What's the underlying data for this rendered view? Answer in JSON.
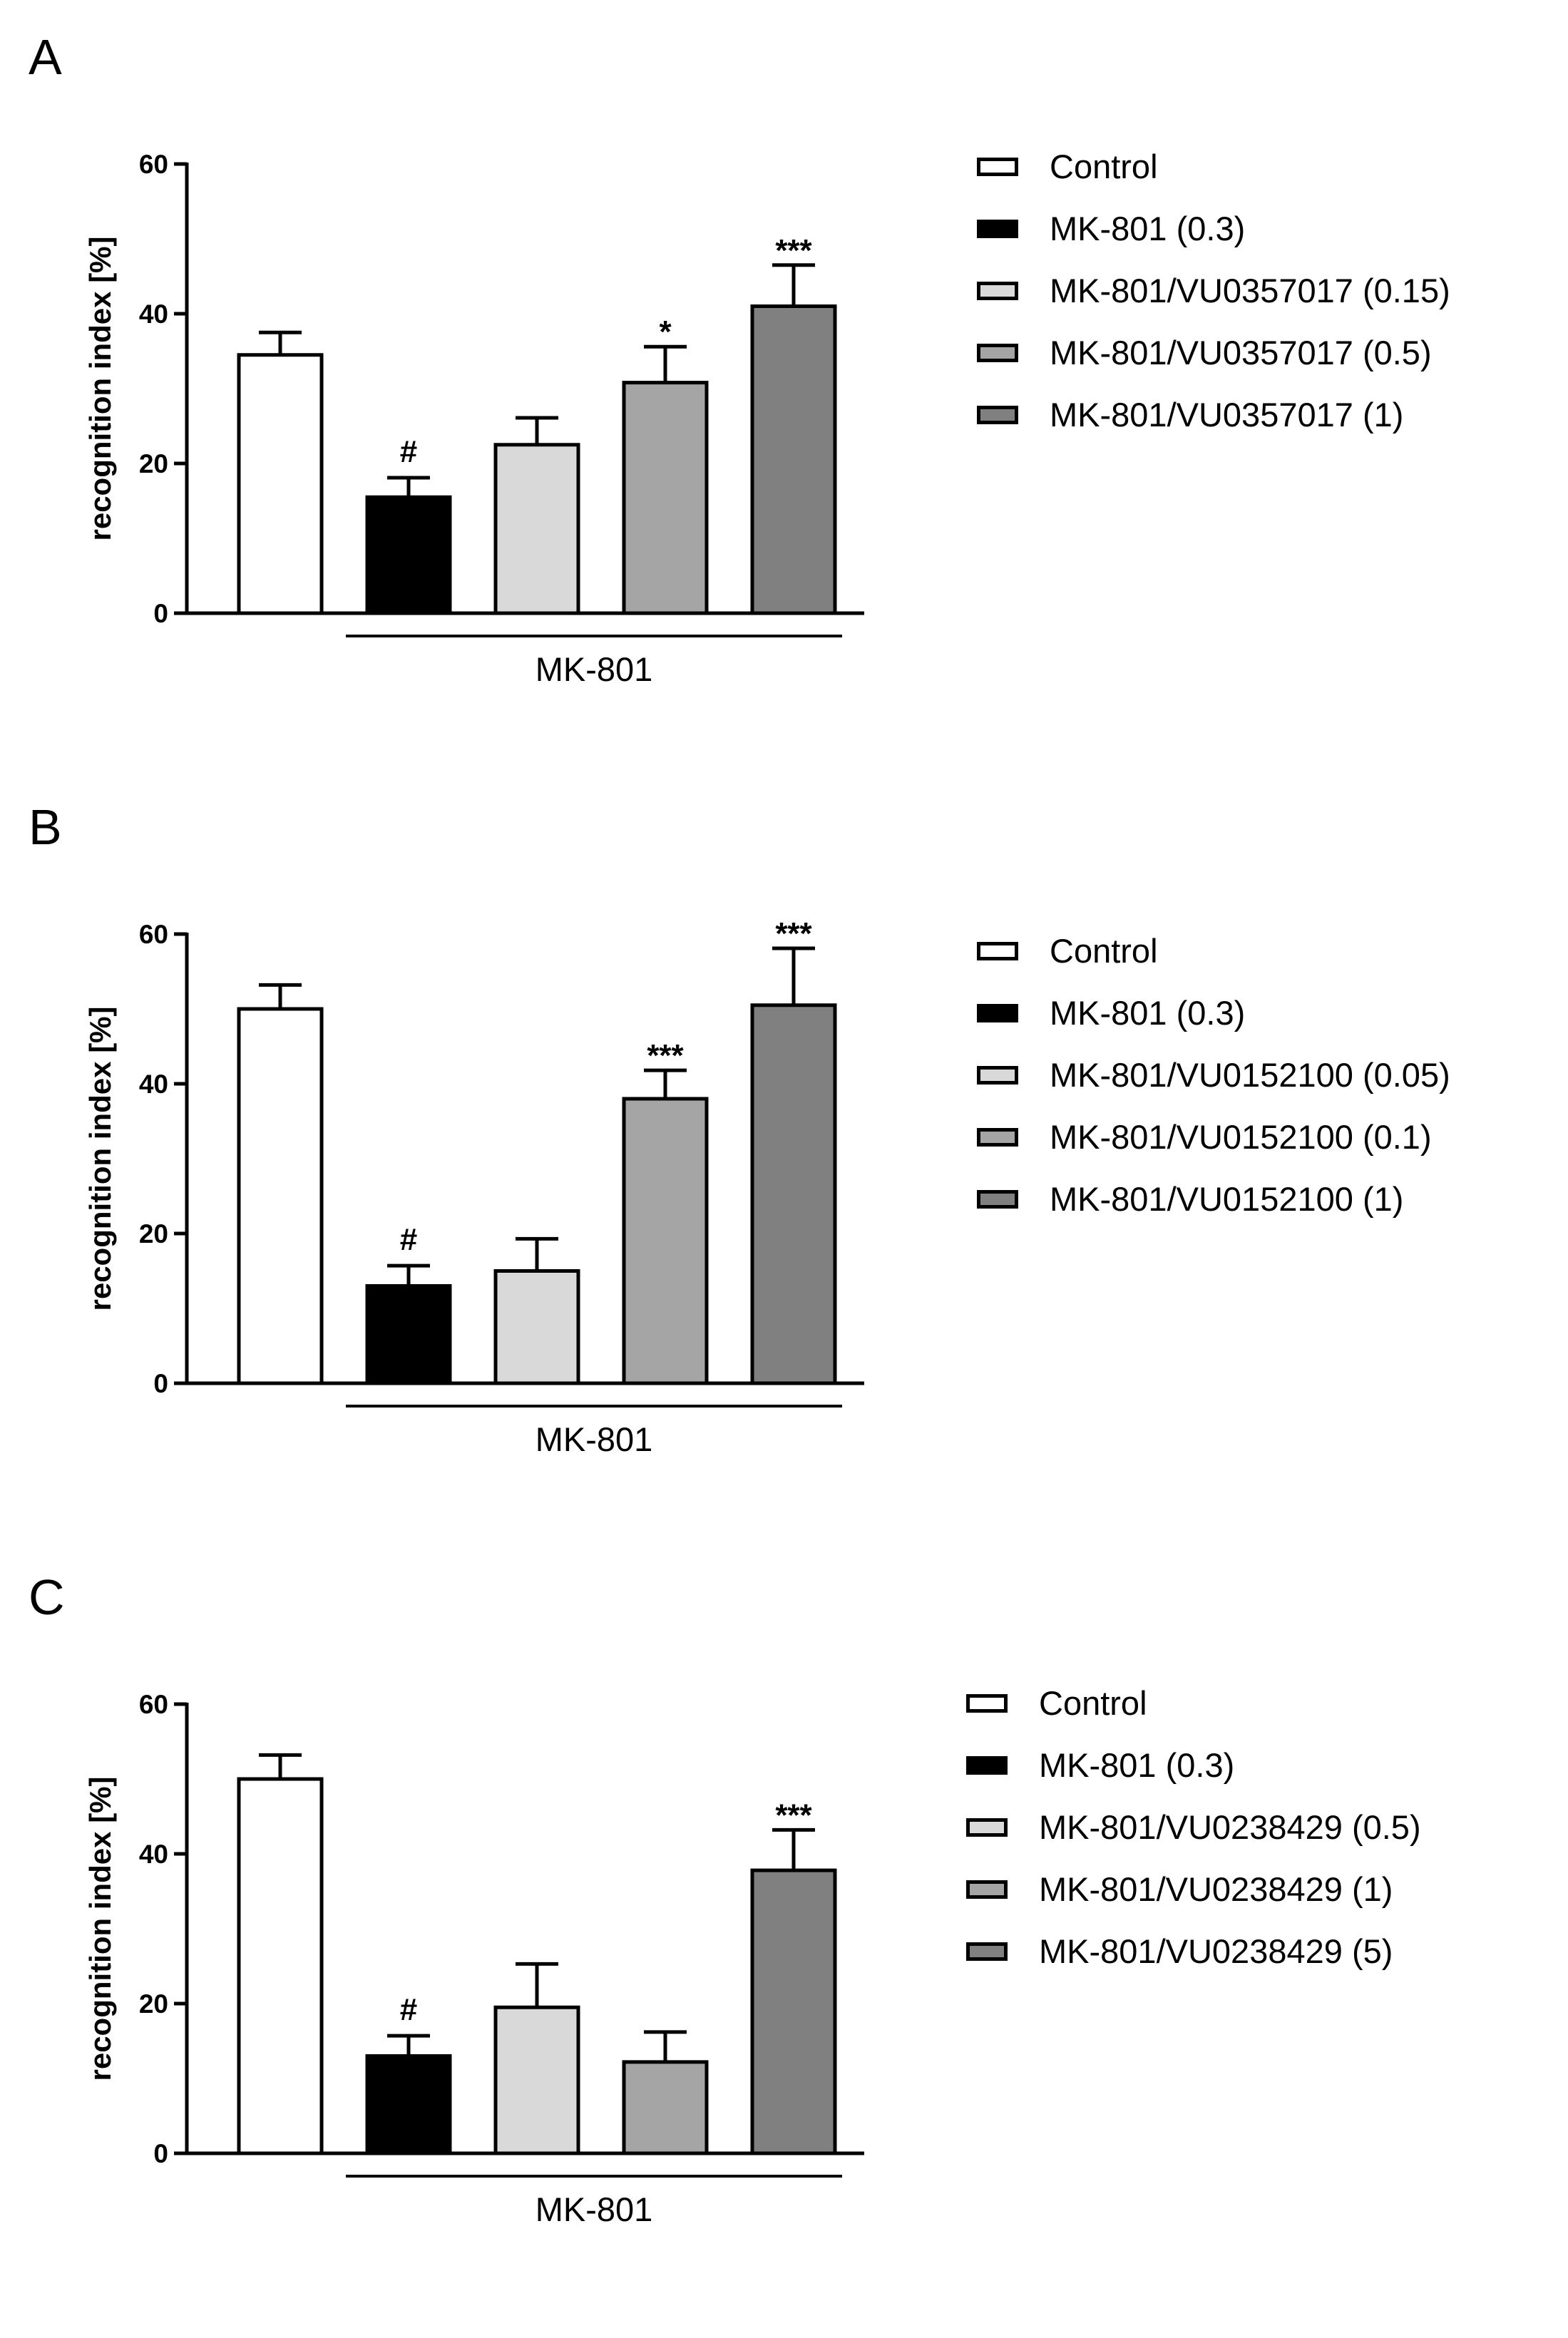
{
  "colors": {
    "Control": "#ffffff",
    "MK-801 (0.3)": "#000000",
    "dose_low": "#d9d9d9",
    "dose_mid": "#a5a5a5",
    "dose_high": "#808080"
  },
  "chart_data": [
    {
      "panel": "A",
      "type": "bar",
      "ylabel": "recognition index [%]",
      "ylim": [
        0,
        60
      ],
      "yticks": [
        "0",
        "20",
        "40",
        "60"
      ],
      "group_label": "MK-801",
      "categories": [
        "Control",
        "MK-801 (0.3)",
        "MK-801/VU0357017 (0.15)",
        "MK-801/VU0357017 (0.5)",
        "MK-801/VU0357017 (1)"
      ],
      "legend": [
        "Control",
        "MK-801 (0.3)",
        "MK-801/VU0357017 (0.15)",
        "MK-801/VU0357017 (0.5)",
        "MK-801/VU0357017 (1)"
      ],
      "values": [
        34.5,
        15.5,
        22.5,
        30.8,
        41
      ],
      "errors": [
        3,
        2.6,
        3.6,
        4.8,
        5.5
      ],
      "significance": [
        "",
        "#",
        "",
        "*",
        "***"
      ],
      "colors": [
        "#ffffff",
        "#000000",
        "#d9d9d9",
        "#a5a5a5",
        "#808080"
      ]
    },
    {
      "panel": "B",
      "type": "bar",
      "ylabel": "recognition index [%]",
      "ylim": [
        0,
        60
      ],
      "yticks": [
        "0",
        "20",
        "40",
        "60"
      ],
      "group_label": "MK-801",
      "categories": [
        "Control",
        "MK-801 (0.3)",
        "MK-801/VU0152100 (0.05)",
        "MK-801/VU0152100 (0.1)",
        "MK-801/VU0152100 (1)"
      ],
      "legend": [
        "Control",
        "MK-801 (0.3)",
        "MK-801/VU0152100 (0.05)",
        "MK-801/VU0152100 (0.1)",
        "MK-801/VU0152100 (1)"
      ],
      "values": [
        50,
        13,
        15,
        38,
        50.5
      ],
      "errors": [
        3.2,
        2.7,
        4.3,
        3.8,
        7.6
      ],
      "significance": [
        "",
        "#",
        "",
        "***",
        "***"
      ],
      "colors": [
        "#ffffff",
        "#000000",
        "#d9d9d9",
        "#a5a5a5",
        "#808080"
      ]
    },
    {
      "panel": "C",
      "type": "bar",
      "ylabel": "recognition index [%]",
      "ylim": [
        0,
        60
      ],
      "yticks": [
        "0",
        "20",
        "40",
        "60"
      ],
      "group_label": "MK-801",
      "categories": [
        "Control",
        "MK-801 (0.3)",
        "MK-801/VU0238429 (0.5)",
        "MK-801/VU0238429 (1)",
        "MK-801/VU0238429 (5)"
      ],
      "legend": [
        "Control",
        "MK-801 (0.3)",
        "MK-801/VU0238429 (0.5)",
        "MK-801/VU0238429 (1)",
        "MK-801/VU0238429 (5)"
      ],
      "values": [
        50,
        13,
        19.5,
        12.2,
        37.8
      ],
      "errors": [
        3.2,
        2.7,
        5.8,
        4,
        5.4
      ],
      "significance": [
        "",
        "#",
        "",
        "",
        "***"
      ],
      "colors": [
        "#ffffff",
        "#000000",
        "#d9d9d9",
        "#a5a5a5",
        "#808080"
      ]
    }
  ]
}
